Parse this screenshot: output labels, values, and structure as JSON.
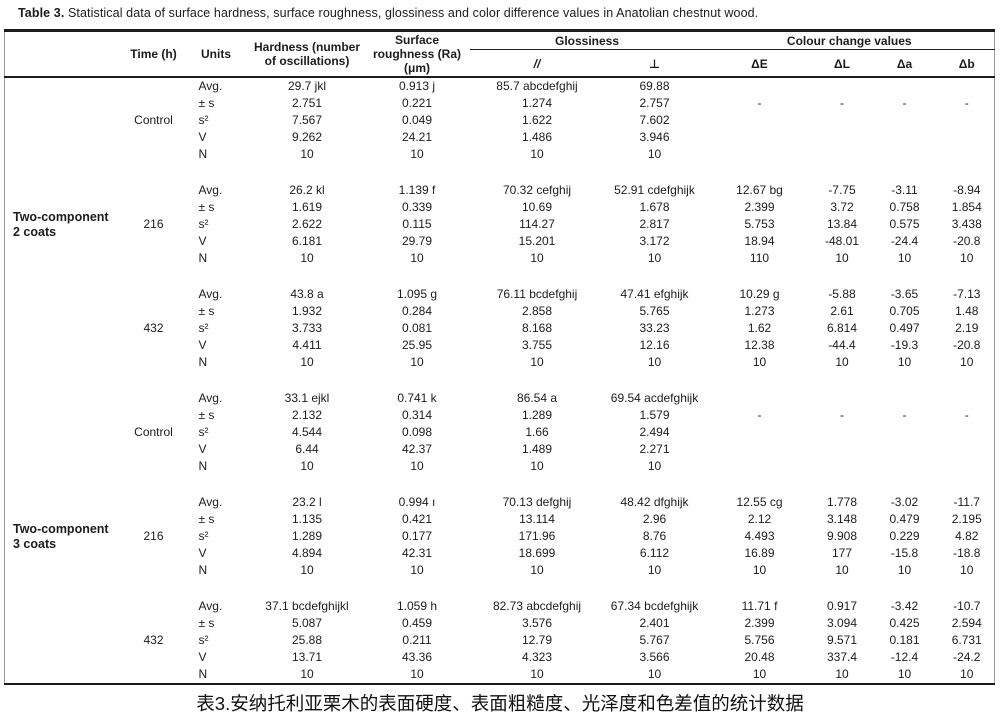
{
  "title": {
    "label": "Table 3.",
    "text": " Statistical data of surface hardness, surface roughness, glossiness and color difference values in Anatolian chestnut wood."
  },
  "caption_zh": "表3.安纳托利亚栗木的表面硬度、表面粗糙度、光泽度和色差值的统计数据",
  "table": {
    "headers": {
      "time": "Time (h)",
      "units": "Units",
      "hardness": "Hardness (number of oscillations)",
      "roughness": "Surface roughness (Ra) (μm)",
      "glossiness": "Glossiness",
      "gloss_parallel": "//",
      "gloss_perpendicular": "⊥",
      "colour": "Colour change values",
      "dE": "ΔE",
      "dL": "ΔL",
      "da": "Δa",
      "db": "Δb"
    },
    "stat_labels": [
      "Avg.",
      "± s",
      "s²",
      "V",
      "N"
    ],
    "groups": [
      {
        "name": "Two-component\n2 coats",
        "blocks": [
          {
            "time": "Control",
            "rows": [
              [
                "29.7 jkl",
                "0.913 j",
                "85.7 abcdefghij",
                "69.88",
                "",
                "",
                "",
                ""
              ],
              [
                "2.751",
                "0.221",
                "1.274",
                "2.757",
                "-",
                "-",
                "-",
                "-"
              ],
              [
                "7.567",
                "0.049",
                "1.622",
                "7.602",
                "",
                "",
                "",
                ""
              ],
              [
                "9.262",
                "24.21",
                "1.486",
                "3.946",
                "",
                "",
                "",
                ""
              ],
              [
                "10",
                "10",
                "10",
                "10",
                "",
                "",
                "",
                ""
              ]
            ]
          },
          {
            "time": "216",
            "rows": [
              [
                "26.2 kl",
                "1.139 f",
                "70.32 cefghij",
                "52.91 cdefghijk",
                "12.67 bg",
                "-7.75",
                "-3.11",
                "-8.94"
              ],
              [
                "1.619",
                "0.339",
                "10.69",
                "1.678",
                "2.399",
                "3.72",
                "0.758",
                "1.854"
              ],
              [
                "2.622",
                "0.115",
                "114.27",
                "2.817",
                "5.753",
                "13.84",
                "0.575",
                "3.438"
              ],
              [
                "6.181",
                "29.79",
                "15.201",
                "3.172",
                "18.94",
                "-48.01",
                "-24.4",
                "-20.8"
              ],
              [
                "10",
                "10",
                "10",
                "10",
                "110",
                "10",
                "10",
                "10"
              ]
            ]
          },
          {
            "time": "432",
            "rows": [
              [
                "43.8 a",
                "1.095 g",
                "76.11 bcdefghij",
                "47.41 efghijk",
                "10.29 g",
                "-5.88",
                "-3.65",
                "-7.13"
              ],
              [
                "1.932",
                "0.284",
                "2.858",
                "5.765",
                "1.273",
                "2.61",
                "0.705",
                "1.48"
              ],
              [
                "3.733",
                "0.081",
                "8.168",
                "33.23",
                "1.62",
                "6.814",
                "0.497",
                "2.19"
              ],
              [
                "4.411",
                "25.95",
                "3.755",
                "12.16",
                "12.38",
                "-44.4",
                "-19.3",
                "-20.8"
              ],
              [
                "10",
                "10",
                "10",
                "10",
                "10",
                "10",
                "10",
                "10"
              ]
            ]
          }
        ]
      },
      {
        "name": "Two-component\n3 coats",
        "blocks": [
          {
            "time": "Control",
            "rows": [
              [
                "33.1 ejkl",
                "0.741 k",
                "86.54 a",
                "69.54 acdefghijk",
                "",
                "",
                "",
                ""
              ],
              [
                "2.132",
                "0.314",
                "1.289",
                "1.579",
                "-",
                "-",
                "-",
                "-"
              ],
              [
                "4.544",
                "0.098",
                "1.66",
                "2.494",
                "",
                "",
                "",
                ""
              ],
              [
                "6.44",
                "42.37",
                "1.489",
                "2.271",
                "",
                "",
                "",
                ""
              ],
              [
                "10",
                "10",
                "10",
                "10",
                "",
                "",
                "",
                ""
              ]
            ]
          },
          {
            "time": "216",
            "rows": [
              [
                "23.2 l",
                "0.994 ı",
                "70.13 defghij",
                "48.42 dfghijk",
                "12.55 cg",
                "1.778",
                "-3.02",
                "-11.7"
              ],
              [
                "1.135",
                "0.421",
                "13.114",
                "2.96",
                "2.12",
                "3.148",
                "0.479",
                "2.195"
              ],
              [
                "1.289",
                "0.177",
                "171.96",
                "8.76",
                "4.493",
                "9.908",
                "0.229",
                "4.82"
              ],
              [
                "4.894",
                "42.31",
                "18.699",
                "6.112",
                "16.89",
                "177",
                "-15.8",
                "-18.8"
              ],
              [
                "10",
                "10",
                "10",
                "10",
                "10",
                "10",
                "10",
                "10"
              ]
            ]
          },
          {
            "time": "432",
            "rows": [
              [
                "37.1 bcdefghijkl",
                "1.059 h",
                "82.73 abcdefghij",
                "67.34 bcdefghijk",
                "11.71 f",
                "0.917",
                "-3.42",
                "-10.7"
              ],
              [
                "5.087",
                "0.459",
                "3.576",
                "2.401",
                "2.399",
                "3.094",
                "0.425",
                "2.594"
              ],
              [
                "25.88",
                "0.211",
                "12.79",
                "5.767",
                "5.756",
                "9.571",
                "0.181",
                "6.731"
              ],
              [
                "13.71",
                "43.36",
                "4.323",
                "3.566",
                "20.48",
                "337.4",
                "-12.4",
                "-24.2"
              ],
              [
                "10",
                "10",
                "10",
                "10",
                "10",
                "10",
                "10",
                "10"
              ]
            ]
          }
        ]
      }
    ]
  }
}
